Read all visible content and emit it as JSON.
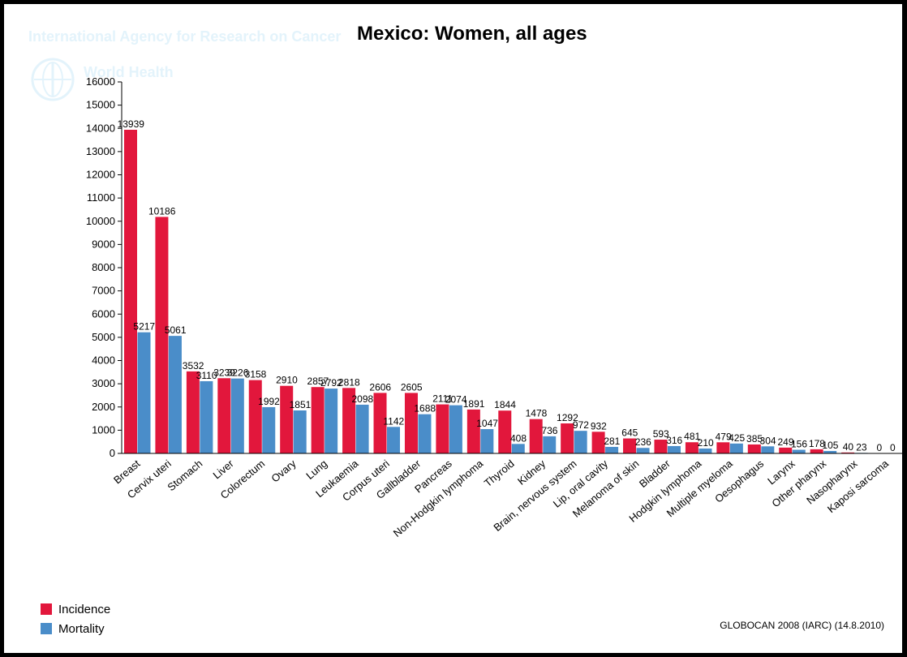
{
  "watermark": {
    "agency": "International Agency for Research on Cancer",
    "who": "World Health"
  },
  "colors": {
    "incidence": "#e2173c",
    "mortality": "#4a8dc9"
  },
  "source_note": "GLOBOCAN 2008 (IARC) (14.8.2010)",
  "chart_data": {
    "type": "bar",
    "title": "Mexico: Women, all ages",
    "xlabel": "",
    "ylabel": "",
    "ylim": [
      0,
      16000
    ],
    "yticks": [
      0,
      1000,
      2000,
      3000,
      4000,
      5000,
      6000,
      7000,
      8000,
      9000,
      10000,
      11000,
      12000,
      13000,
      14000,
      15000,
      16000
    ],
    "legend_position": "bottom-left",
    "categories": [
      "Breast",
      "Cervix uteri",
      "Stomach",
      "Liver",
      "Colorectum",
      "Ovary",
      "Lung",
      "Leukaemia",
      "Corpus uteri",
      "Gallbladder",
      "Pancreas",
      "Non-Hodgkin lymphoma",
      "Thyroid",
      "Kidney",
      "Brain, nervous system",
      "Lip, oral cavity",
      "Melanoma of skin",
      "Bladder",
      "Hodgkin lymphoma",
      "Multiple myeloma",
      "Oesophagus",
      "Larynx",
      "Other pharynx",
      "Nasopharynx",
      "Kaposi sarcoma"
    ],
    "series": [
      {
        "name": "Incidence",
        "values": [
          13939,
          10186,
          3532,
          3239,
          3158,
          2910,
          2857,
          2818,
          2606,
          2605,
          2111,
          1891,
          1844,
          1478,
          1292,
          932,
          645,
          593,
          481,
          479,
          385,
          249,
          178,
          40,
          0
        ],
        "labels": [
          "13939",
          "10186",
          "3532",
          "3239",
          "3158",
          "2910",
          "2857",
          "2818",
          "2606",
          "2605",
          "2111",
          "1891",
          "1844",
          "1478",
          "1292",
          "932",
          "645",
          "593",
          "481",
          "479",
          "385",
          "249",
          "178",
          "40",
          "0"
        ]
      },
      {
        "name": "Mortality",
        "values": [
          5217,
          5061,
          3110,
          3226,
          1992,
          1851,
          2792,
          2098,
          1142,
          1688,
          2074,
          1047,
          408,
          736,
          972,
          281,
          236,
          316,
          210,
          425,
          304,
          156,
          105,
          23,
          0
        ],
        "labels": [
          "5217",
          "5061",
          "3110",
          "3226",
          "1992",
          "1851",
          "2792",
          "2098",
          "1142",
          "1688",
          "2074",
          "1047",
          "408",
          "736",
          "972",
          "281",
          "236",
          "316",
          "210",
          "425",
          "304",
          "156",
          "105",
          "23",
          "0"
        ]
      }
    ]
  }
}
